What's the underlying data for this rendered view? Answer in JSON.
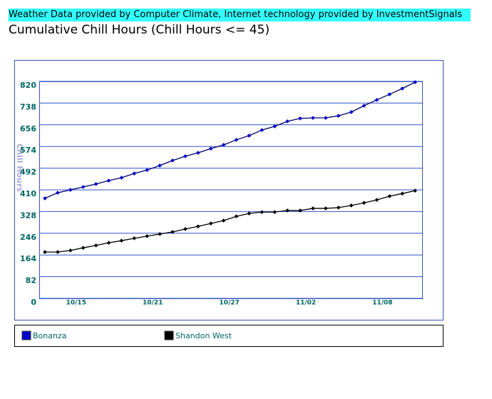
{
  "header": "Weather Data provided by Computer Climate, Internet technology provided by InvestmentSignals",
  "chart_data": {
    "type": "line",
    "title": "Cumulative Chill Hours (Chill Hours <= 45)",
    "y_label": "Chill Hours",
    "categories": [
      null,
      null,
      "10/15",
      null,
      null,
      null,
      null,
      null,
      "10/21",
      null,
      null,
      null,
      null,
      null,
      "10/27",
      null,
      null,
      null,
      null,
      null,
      "11/02",
      null,
      null,
      null,
      null,
      null,
      "11/08",
      null,
      null,
      null
    ],
    "series": [
      {
        "name": "Bonanza",
        "color": "#0000cc",
        "line_color": "#000066",
        "values": [
          378,
          399,
          410,
          421,
          432,
          445,
          456,
          472,
          485,
          502,
          521,
          537,
          550,
          566,
          580,
          599,
          615,
          636,
          650,
          669,
          680,
          682,
          682,
          690,
          704,
          728,
          750,
          771,
          793,
          817
        ]
      },
      {
        "name": "Shandon West",
        "color": "#000000",
        "line_color": "#000000",
        "values": [
          175,
          175,
          181,
          191,
          200,
          210,
          218,
          227,
          235,
          243,
          251,
          262,
          272,
          283,
          294,
          310,
          321,
          326,
          326,
          332,
          332,
          340,
          340,
          343,
          351,
          361,
          372,
          386,
          396,
          407
        ]
      }
    ],
    "ylim": [
      0,
      820
    ],
    "yticks": [
      0,
      82,
      164,
      246,
      328,
      410,
      492,
      574,
      656,
      738,
      820
    ],
    "grid": true
  }
}
